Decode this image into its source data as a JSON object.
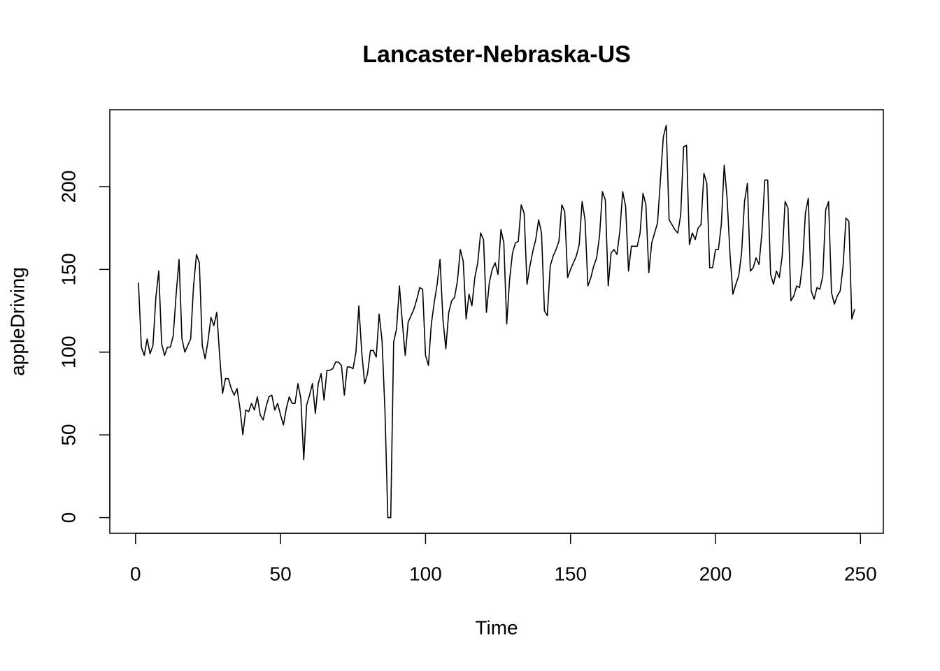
{
  "chart_data": {
    "type": "line",
    "title": "Lancaster-Nebraska-US",
    "xlabel": "Time",
    "ylabel": "appleDriving",
    "color": "#000000",
    "x": [
      1,
      2,
      3,
      4,
      5,
      6,
      7,
      8,
      9,
      10,
      11,
      12,
      13,
      14,
      15,
      16,
      17,
      18,
      19,
      20,
      21,
      22,
      23,
      24,
      25,
      26,
      27,
      28,
      29,
      30,
      31,
      32,
      33,
      34,
      35,
      36,
      37,
      38,
      39,
      40,
      41,
      42,
      43,
      44,
      45,
      46,
      47,
      48,
      49,
      50,
      51,
      52,
      53,
      54,
      55,
      56,
      57,
      58,
      59,
      60,
      61,
      62,
      63,
      64,
      65,
      66,
      67,
      68,
      69,
      70,
      71,
      72,
      73,
      74,
      75,
      76,
      77,
      78,
      79,
      80,
      81,
      82,
      83,
      84,
      85,
      86,
      87,
      88,
      89,
      90,
      91,
      92,
      93,
      94,
      95,
      96,
      97,
      98,
      99,
      100,
      101,
      102,
      103,
      104,
      105,
      106,
      107,
      108,
      109,
      110,
      111,
      112,
      113,
      114,
      115,
      116,
      117,
      118,
      119,
      120,
      121,
      122,
      123,
      124,
      125,
      126,
      127,
      128,
      129,
      130,
      131,
      132,
      133,
      134,
      135,
      136,
      137,
      138,
      139,
      140,
      141,
      142,
      143,
      144,
      145,
      146,
      147,
      148,
      149,
      150,
      151,
      152,
      153,
      154,
      155,
      156,
      157,
      158,
      159,
      160,
      161,
      162,
      163,
      164,
      165,
      166,
      167,
      168,
      169,
      170,
      171,
      172,
      173,
      174,
      175,
      176,
      177,
      178,
      179,
      180,
      181,
      182,
      183,
      184,
      185,
      186,
      187,
      188,
      189,
      190,
      191,
      192,
      193,
      194,
      195,
      196,
      197,
      198,
      199,
      200,
      201,
      202,
      203,
      204,
      205,
      206,
      207,
      208,
      209,
      210,
      211,
      212,
      213,
      214,
      215,
      216,
      217,
      218,
      219,
      220,
      221,
      222,
      223,
      224,
      225,
      226,
      227,
      228,
      229,
      230,
      231,
      232,
      233,
      234,
      235,
      236,
      237,
      238,
      239,
      240,
      241,
      242,
      243,
      244,
      245,
      246,
      247,
      248
    ],
    "values": [
      142,
      103,
      98,
      108,
      99,
      104,
      133,
      149,
      105,
      98,
      103,
      103,
      110,
      135,
      156,
      108,
      100,
      104,
      108,
      140,
      159,
      154,
      104,
      96,
      107,
      121,
      116,
      124,
      98,
      75,
      84,
      84,
      78,
      74,
      78,
      66,
      50,
      65,
      64,
      69,
      65,
      73,
      62,
      59,
      67,
      73,
      74,
      65,
      69,
      62,
      56,
      66,
      73,
      69,
      69,
      81,
      72,
      35,
      68,
      74,
      81,
      63,
      81,
      87,
      71,
      89,
      89,
      90,
      94,
      94,
      92,
      74,
      91,
      91,
      90,
      100,
      128,
      100,
      81,
      87,
      101,
      101,
      97,
      123,
      107,
      65,
      0,
      0,
      106,
      114,
      140,
      118,
      98,
      118,
      122,
      126,
      132,
      139,
      138,
      98,
      92,
      117,
      130,
      141,
      156,
      120,
      102,
      124,
      131,
      133,
      143,
      162,
      155,
      120,
      135,
      128,
      145,
      154,
      172,
      168,
      124,
      142,
      150,
      154,
      147,
      174,
      166,
      117,
      144,
      160,
      166,
      167,
      189,
      184,
      141,
      152,
      161,
      168,
      180,
      172,
      125,
      122,
      152,
      158,
      162,
      167,
      189,
      185,
      145,
      150,
      154,
      158,
      165,
      191,
      180,
      140,
      145,
      152,
      157,
      170,
      197,
      192,
      140,
      160,
      162,
      159,
      173,
      197,
      188,
      149,
      164,
      164,
      164,
      172,
      196,
      189,
      148,
      166,
      172,
      178,
      204,
      230,
      237,
      180,
      177,
      174,
      172,
      183,
      224,
      225,
      165,
      172,
      168,
      175,
      177,
      208,
      202,
      151,
      151,
      162,
      162,
      177,
      213,
      193,
      159,
      135,
      141,
      146,
      160,
      191,
      202,
      149,
      151,
      157,
      153,
      172,
      204,
      204,
      147,
      141,
      149,
      145,
      158,
      191,
      187,
      131,
      134,
      140,
      139,
      153,
      184,
      193,
      137,
      132,
      139,
      138,
      146,
      186,
      191,
      136,
      129,
      134,
      137,
      152,
      181,
      179,
      120,
      126
    ],
    "xlim": [
      -8.88,
      257.88
    ],
    "xticks": [
      0,
      50,
      100,
      150,
      200,
      250
    ],
    "ylim": [
      -9.48,
      246.48
    ],
    "yticks": [
      0,
      50,
      100,
      150,
      200
    ]
  }
}
